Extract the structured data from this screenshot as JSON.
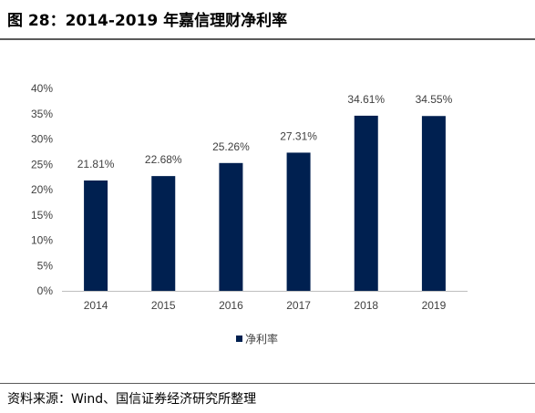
{
  "header": {
    "title": "图 28：2014-2019 年嘉信理财净利率"
  },
  "footer": {
    "source": "资料来源：Wind、国信证券经济研究所整理"
  },
  "colors": {
    "bar": "#002050",
    "rule": "#5a5a5a"
  },
  "chart_data": {
    "type": "bar",
    "categories": [
      "2014",
      "2015",
      "2016",
      "2017",
      "2018",
      "2019"
    ],
    "series": [
      {
        "name": "净利率",
        "values": [
          21.81,
          22.68,
          25.26,
          27.31,
          34.61,
          34.55
        ]
      }
    ],
    "data_labels": [
      "21.81%",
      "22.68%",
      "25.26%",
      "27.31%",
      "34.61%",
      "34.55%"
    ],
    "yticks": [
      "0%",
      "5%",
      "10%",
      "15%",
      "20%",
      "25%",
      "30%",
      "35%",
      "40%"
    ],
    "ylim": [
      0,
      40
    ],
    "grid": false,
    "legend_position": "bottom"
  }
}
